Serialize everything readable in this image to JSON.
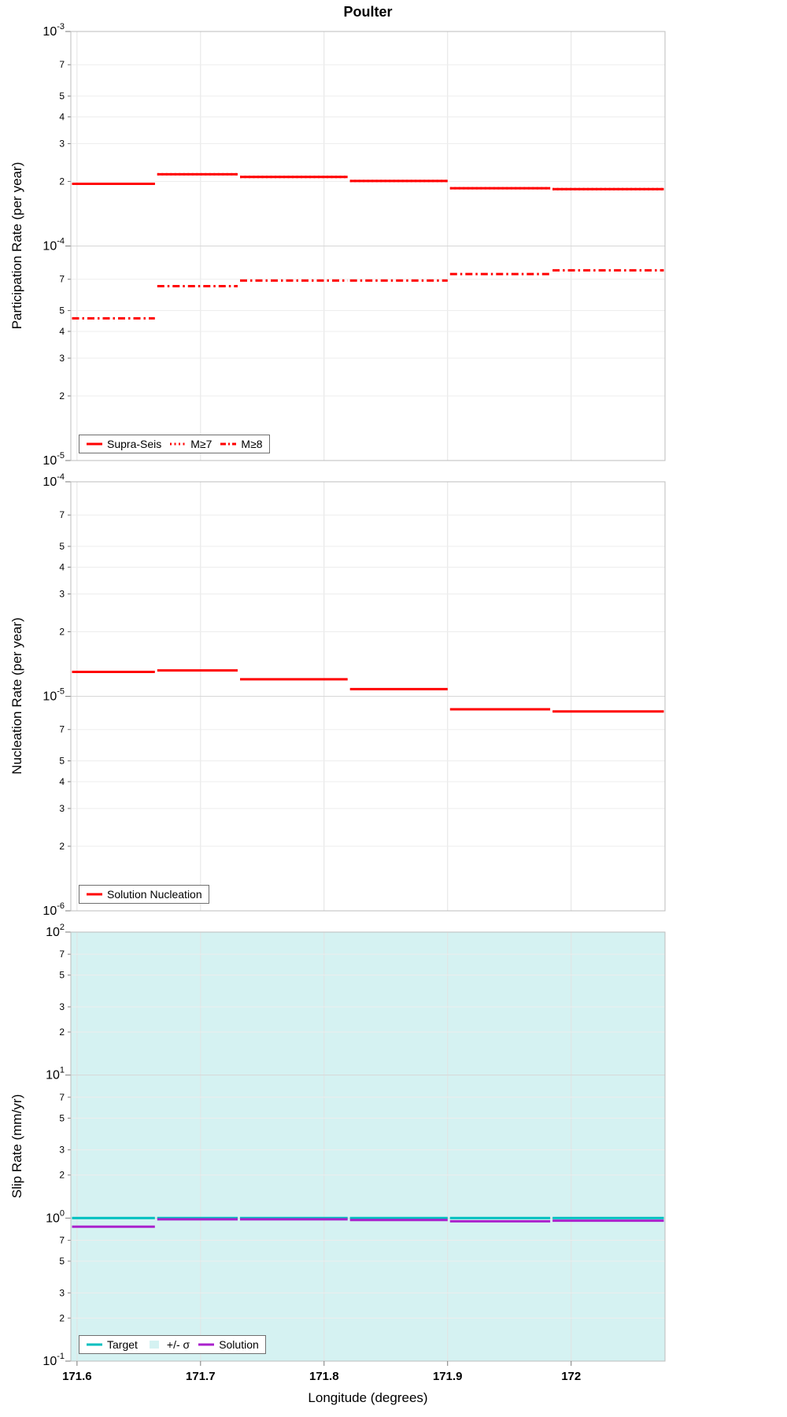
{
  "title": "Poulter",
  "x_axis": {
    "label": "Longitude (degrees)",
    "xlim": [
      171.595,
      172.076
    ],
    "ticks": [
      171.6,
      171.7,
      171.8,
      171.9,
      172
    ],
    "tick_labels": [
      "171.6",
      "171.7",
      "171.8",
      "171.9",
      "172"
    ]
  },
  "chart_data": [
    {
      "type": "line",
      "step": true,
      "id": "participation",
      "ylabel": "Participation Rate (per year)",
      "ylim": [
        1e-05,
        0.001
      ],
      "y_exponent_range": [
        -5,
        -3
      ],
      "ytick_exponents": [
        -3,
        -4,
        -5
      ],
      "minor_tick_labels": [
        7,
        5,
        4,
        3,
        2
      ],
      "x_edges": [
        171.595,
        171.664,
        171.731,
        171.82,
        171.901,
        171.984,
        172.076
      ],
      "series": [
        {
          "name": "Supra-Seis",
          "color": "#ff0000",
          "style": "solid",
          "values": [
            0.000195,
            0.000216,
            0.00021,
            0.000201,
            0.000186,
            0.000184
          ]
        },
        {
          "name": "M≥7",
          "color": "#ff0000",
          "style": "dotted",
          "values": [
            0.000195,
            0.000216,
            0.00021,
            0.000201,
            0.000186,
            0.000184
          ]
        },
        {
          "name": "M≥8",
          "color": "#ff0000",
          "style": "dashdot",
          "values": [
            4.6e-05,
            6.5e-05,
            6.9e-05,
            6.9e-05,
            7.4e-05,
            7.7e-05
          ]
        }
      ]
    },
    {
      "type": "line",
      "step": true,
      "id": "nucleation",
      "ylabel": "Nucleation Rate (per year)",
      "ylim": [
        1e-06,
        0.0001
      ],
      "y_exponent_range": [
        -6,
        -4
      ],
      "ytick_exponents": [
        -4,
        -5,
        -6
      ],
      "minor_tick_labels": [
        7,
        5,
        4,
        3,
        2
      ],
      "x_edges": [
        171.595,
        171.664,
        171.731,
        171.82,
        171.901,
        171.984,
        172.076
      ],
      "series": [
        {
          "name": "Solution Nucleation",
          "color": "#ff0000",
          "style": "solid",
          "values": [
            1.3e-05,
            1.32e-05,
            1.2e-05,
            1.08e-05,
            8.7e-06,
            8.5e-06
          ]
        }
      ]
    },
    {
      "type": "line",
      "step": true,
      "id": "slip-rate",
      "ylabel": "Slip Rate (mm/yr)",
      "ylim": [
        0.1,
        100
      ],
      "y_exponent_range": [
        -1,
        2
      ],
      "ytick_exponents": [
        2,
        1,
        0,
        -1
      ],
      "minor_tick_labels": [
        7,
        5,
        3,
        2
      ],
      "x_edges": [
        171.595,
        171.664,
        171.731,
        171.82,
        171.901,
        171.984,
        172.076
      ],
      "band": {
        "name": "+/- σ",
        "color": "#d5f2f2",
        "lower": 0.1,
        "upper": 100
      },
      "series": [
        {
          "name": "Target",
          "color": "#00bfbf",
          "style": "solid",
          "values": [
            1.0,
            1.0,
            1.0,
            1.0,
            1.0,
            1.0
          ]
        },
        {
          "name": "Solution",
          "color": "#aa22cc",
          "style": "solid",
          "values": [
            0.87,
            0.98,
            0.98,
            0.97,
            0.95,
            0.96
          ]
        }
      ]
    }
  ]
}
